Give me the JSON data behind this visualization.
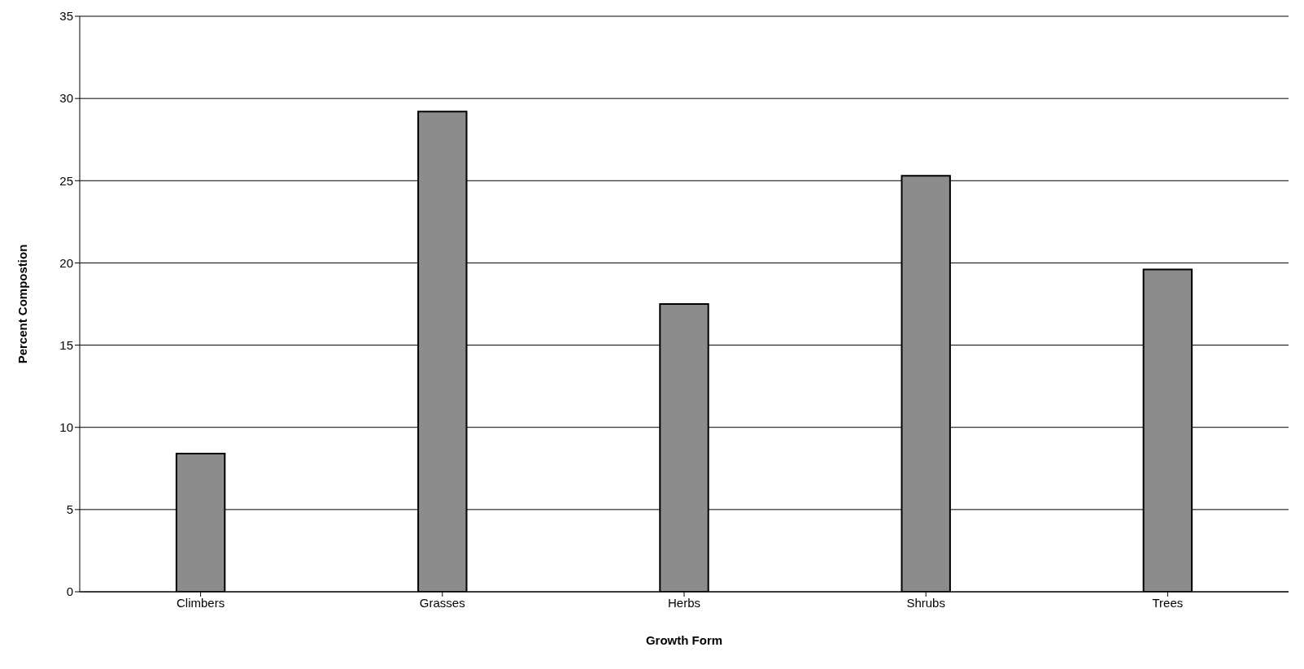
{
  "chart_data": {
    "type": "bar",
    "xlabel": "Growth Form",
    "ylabel": "Percent Compostion",
    "categories": [
      "Climbers",
      "Grasses",
      "Herbs",
      "Shrubs",
      "Trees"
    ],
    "values": [
      8.4,
      29.2,
      17.5,
      25.3,
      19.6
    ],
    "color": "#8c8c8c",
    "ylim": [
      0,
      35
    ],
    "yticks": [
      0,
      5,
      10,
      15,
      20,
      25,
      30,
      35
    ],
    "grid": "y"
  }
}
